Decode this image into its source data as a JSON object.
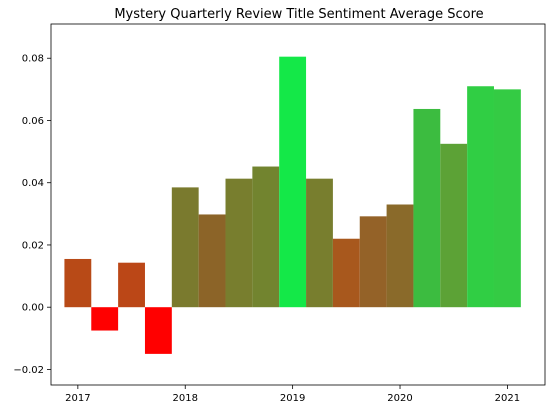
{
  "chart_data": {
    "type": "bar",
    "title": "Mystery Quarterly Review Title Sentiment Average Score",
    "xlabel": "",
    "ylabel": "",
    "xlim": [
      2016.75,
      2021.35
    ],
    "ylim": [
      -0.025,
      0.091
    ],
    "x_ticks": [
      {
        "value": 2017,
        "label": "2017"
      },
      {
        "value": 2018,
        "label": "2018"
      },
      {
        "value": 2019,
        "label": "2019"
      },
      {
        "value": 2020,
        "label": "2020"
      },
      {
        "value": 2021,
        "label": "2021"
      }
    ],
    "y_ticks": [
      {
        "value": -0.02,
        "label": "−0.02"
      },
      {
        "value": 0.0,
        "label": "0.00"
      },
      {
        "value": 0.02,
        "label": "0.02"
      },
      {
        "value": 0.04,
        "label": "0.04"
      },
      {
        "value": 0.06,
        "label": "0.06"
      },
      {
        "value": 0.08,
        "label": "0.08"
      }
    ],
    "grid": false,
    "legend": "none",
    "bar_width_years": 0.25,
    "bars": [
      {
        "x": 2017.0,
        "value": 0.0155,
        "color": "#b84a17"
      },
      {
        "x": 2017.25,
        "value": -0.0075,
        "color": "#ff0000"
      },
      {
        "x": 2017.5,
        "value": 0.0143,
        "color": "#bb4717"
      },
      {
        "x": 2017.75,
        "value": -0.015,
        "color": "#ff0000"
      },
      {
        "x": 2018.0,
        "value": 0.0385,
        "color": "#7a7a2e"
      },
      {
        "x": 2018.25,
        "value": 0.0298,
        "color": "#8c6428"
      },
      {
        "x": 2018.5,
        "value": 0.0413,
        "color": "#787e2e"
      },
      {
        "x": 2018.75,
        "value": 0.0452,
        "color": "#72842f"
      },
      {
        "x": 2019.0,
        "value": 0.0805,
        "color": "#14e848"
      },
      {
        "x": 2019.25,
        "value": 0.0413,
        "color": "#787e2e"
      },
      {
        "x": 2019.5,
        "value": 0.022,
        "color": "#a8581d"
      },
      {
        "x": 2019.75,
        "value": 0.0292,
        "color": "#946228"
      },
      {
        "x": 2020.0,
        "value": 0.033,
        "color": "#8a6a2a"
      },
      {
        "x": 2020.25,
        "value": 0.0637,
        "color": "#3cbc40"
      },
      {
        "x": 2020.5,
        "value": 0.0525,
        "color": "#5ca236"
      },
      {
        "x": 2020.75,
        "value": 0.071,
        "color": "#30ce44"
      },
      {
        "x": 2021.0,
        "value": 0.07,
        "color": "#34cb44"
      }
    ]
  }
}
